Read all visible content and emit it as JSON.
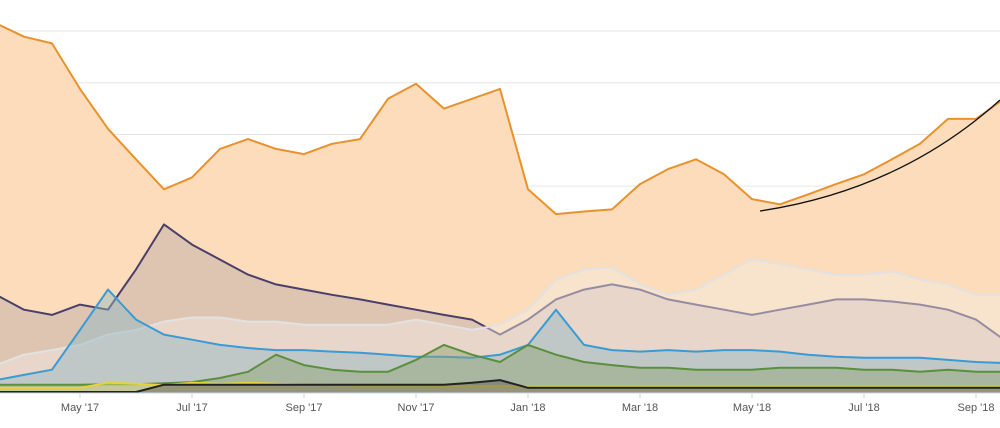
{
  "chart_data": {
    "type": "area",
    "categories": [
      null,
      null,
      null,
      "May '17",
      null,
      null,
      null,
      "Jul '17",
      null,
      null,
      null,
      "Sep '17",
      null,
      null,
      null,
      "Nov '17",
      null,
      null,
      null,
      "Jan '18",
      null,
      null,
      null,
      "Mar '18",
      null,
      null,
      null,
      "May '18",
      null,
      null,
      null,
      "Jul '18",
      null,
      null,
      null,
      "Sep '18",
      null
    ],
    "ylim": [
      0,
      7.6
    ],
    "yticks": [
      1,
      2,
      3,
      4,
      5,
      6,
      7
    ],
    "grid": true,
    "series": [
      {
        "color": "#e8922e",
        "fill": "#fcdcbb",
        "values": [
          7.15,
          6.89,
          6.76,
          5.88,
          5.11,
          4.52,
          3.94,
          4.17,
          4.72,
          4.91,
          4.72,
          4.62,
          4.82,
          4.91,
          5.69,
          5.98,
          5.5,
          5.69,
          5.88,
          3.94,
          3.46,
          3.51,
          3.55,
          4.04,
          4.33,
          4.52,
          4.23,
          3.75,
          3.65,
          3.84,
          4.04,
          4.23,
          4.52,
          4.82,
          5.3,
          5.3,
          5.69
        ]
      },
      {
        "color": "#4a3f6b",
        "fill": "#b8a8a8",
        "values": [
          1.9,
          1.61,
          1.51,
          1.71,
          1.61,
          2.39,
          3.26,
          2.87,
          2.58,
          2.29,
          2.1,
          2.0,
          1.9,
          1.81,
          1.71,
          1.61,
          1.51,
          1.42,
          1.13,
          1.42,
          1.81,
          2.0,
          2.1,
          2.0,
          1.81,
          1.71,
          1.61,
          1.51,
          1.61,
          1.71,
          1.81,
          1.81,
          1.77,
          1.71,
          1.61,
          1.42,
          1.03
        ]
      },
      {
        "color": "#e2e2e2",
        "fill": "#f3ece4",
        "values": [
          0.54,
          0.74,
          0.83,
          0.93,
          1.13,
          1.22,
          1.38,
          1.46,
          1.46,
          1.38,
          1.38,
          1.32,
          1.32,
          1.32,
          1.32,
          1.42,
          1.32,
          1.22,
          1.32,
          1.61,
          2.19,
          2.39,
          2.43,
          2.1,
          1.9,
          2.0,
          2.29,
          2.58,
          2.49,
          2.39,
          2.29,
          2.29,
          2.35,
          2.19,
          2.1,
          1.9,
          1.9
        ]
      },
      {
        "color": "#3a9bd4",
        "fill": "#8fb8c4",
        "values": [
          0.25,
          0.35,
          0.45,
          1.22,
          2.0,
          1.42,
          1.13,
          1.03,
          0.93,
          0.87,
          0.83,
          0.83,
          0.8,
          0.78,
          0.74,
          0.7,
          0.7,
          0.68,
          0.74,
          0.93,
          1.61,
          0.93,
          0.83,
          0.8,
          0.83,
          0.8,
          0.83,
          0.83,
          0.8,
          0.74,
          0.7,
          0.68,
          0.68,
          0.68,
          0.64,
          0.6,
          0.58
        ]
      },
      {
        "color": "#5a8f3c",
        "fill": "#8fa070",
        "values": [
          0.16,
          0.16,
          0.16,
          0.16,
          0.17,
          0.17,
          0.19,
          0.21,
          0.29,
          0.41,
          0.74,
          0.54,
          0.45,
          0.41,
          0.41,
          0.64,
          0.93,
          0.74,
          0.6,
          0.93,
          0.74,
          0.6,
          0.54,
          0.49,
          0.49,
          0.45,
          0.45,
          0.45,
          0.49,
          0.49,
          0.49,
          0.45,
          0.45,
          0.41,
          0.45,
          0.41,
          0.41
        ]
      },
      {
        "color": "#e8d23a",
        "fill": "#e9e08a",
        "values": [
          0.1,
          0.1,
          0.1,
          0.1,
          0.2,
          0.18,
          0.15,
          0.2,
          0.18,
          0.2,
          0.18,
          0.16,
          0.15,
          0.14,
          0.14,
          0.14,
          0.13,
          0.13,
          0.14,
          0.12,
          0.12,
          0.12,
          0.12,
          0.12,
          0.12,
          0.12,
          0.12,
          0.12,
          0.12,
          0.12,
          0.12,
          0.12,
          0.12,
          0.12,
          0.12,
          0.12,
          0.12
        ]
      },
      {
        "color": "#222222",
        "fill": "#555555",
        "values": [
          0.02,
          0.02,
          0.02,
          0.02,
          0.02,
          0.02,
          0.16,
          0.16,
          0.16,
          0.16,
          0.16,
          0.16,
          0.16,
          0.16,
          0.16,
          0.16,
          0.16,
          0.2,
          0.25,
          0.1,
          0.1,
          0.1,
          0.1,
          0.1,
          0.1,
          0.1,
          0.1,
          0.1,
          0.1,
          0.1,
          0.1,
          0.1,
          0.1,
          0.1,
          0.1,
          0.1,
          0.1
        ]
      }
    ]
  }
}
